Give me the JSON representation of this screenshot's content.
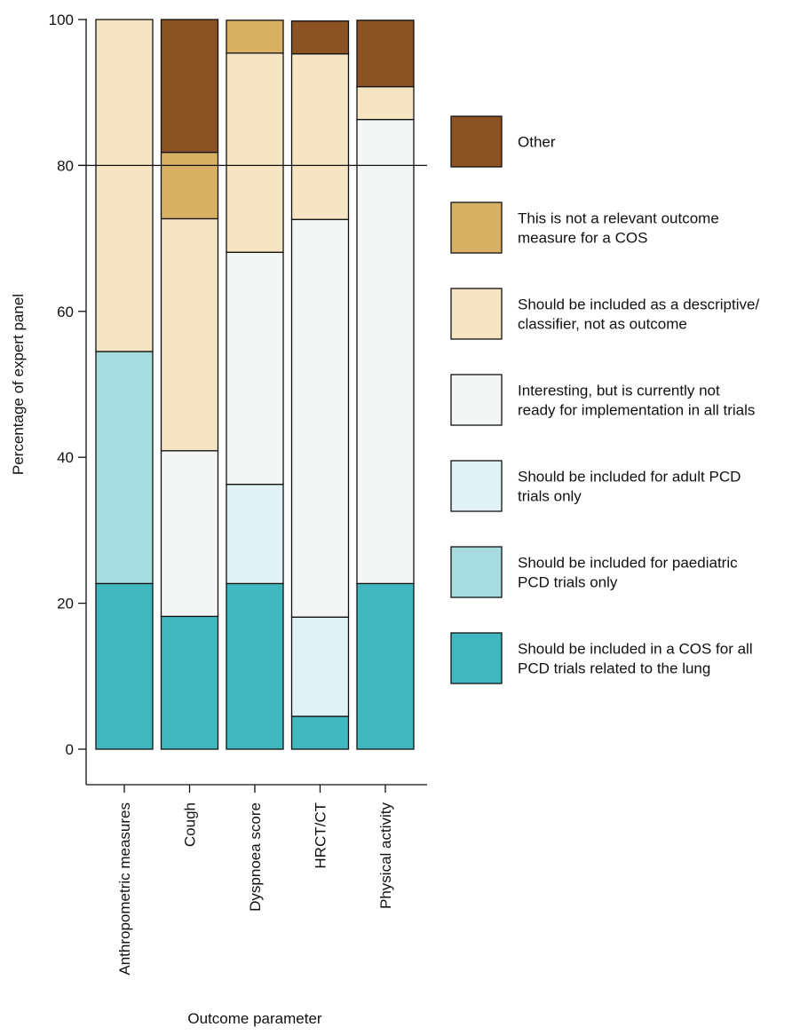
{
  "chart_data": {
    "type": "bar",
    "stacked": true,
    "xlabel": "Outcome parameter",
    "ylabel": "Percentage of expert panel",
    "ylim": [
      0,
      100
    ],
    "yticks": [
      0,
      20,
      40,
      60,
      80,
      100
    ],
    "reference_line": 80,
    "legend_position": "right",
    "categories": [
      "Anthropometric measures",
      "Cough",
      "Dyspnoea score",
      "HRCT/CT",
      "Physical activity"
    ],
    "series": [
      {
        "name": "Should be included in a COS for all PCD trials related to the lung",
        "color": "#41b8bf",
        "values": [
          22.7,
          18.2,
          22.7,
          4.5,
          22.7
        ]
      },
      {
        "name": "Should be included for paediatric PCD trials only",
        "color": "#a6dcdf",
        "values": [
          31.8,
          0,
          0,
          0,
          0
        ]
      },
      {
        "name": "Should be included for adult PCD trials only",
        "color": "#e0f2f3",
        "values": [
          0,
          0,
          13.6,
          13.6,
          0
        ]
      },
      {
        "name": "Interesting, but is currently not ready for implementation in all trials",
        "color": "#f4f5f5",
        "values": [
          0,
          22.7,
          31.8,
          54.5,
          63.6
        ]
      },
      {
        "name": "Should be included as a descriptive/ classifier, not as outcome",
        "color": "#f5e5c3",
        "values": [
          45.5,
          31.8,
          27.3,
          22.7,
          4.5
        ]
      },
      {
        "name": "This is not a relevant outcome measure for a COS",
        "color": "#d8b063",
        "values": [
          0,
          9.1,
          4.5,
          0,
          0
        ]
      },
      {
        "name": "Other",
        "color": "#8b5224",
        "values": [
          0,
          18.2,
          0,
          4.5,
          9.1
        ]
      }
    ],
    "legend_lines": [
      [
        "Other"
      ],
      [
        "This is not a relevant outcome",
        "measure for a COS"
      ],
      [
        "Should be included as a descriptive/",
        "classifier, not as outcome"
      ],
      [
        "Interesting, but is currently not",
        "ready for implementation in all trials"
      ],
      [
        "Should be included for adult PCD",
        "trials only"
      ],
      [
        "Should be included for paediatric",
        "PCD trials only"
      ],
      [
        "Should be included in a COS for all",
        "PCD trials related to the lung"
      ]
    ]
  }
}
